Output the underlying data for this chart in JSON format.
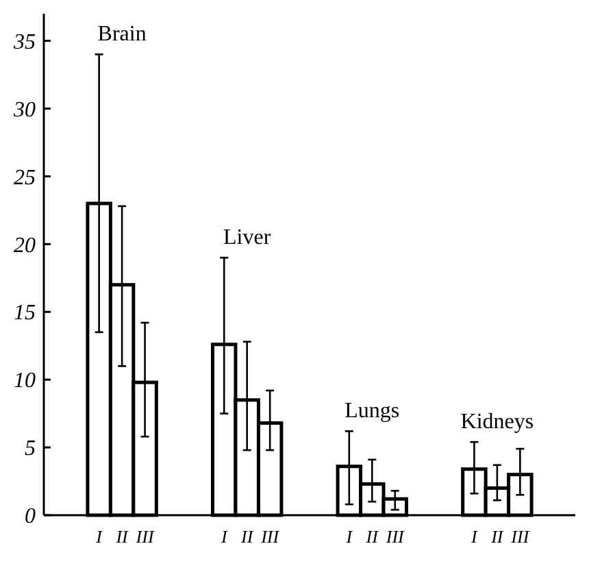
{
  "chart_data": {
    "type": "bar",
    "categories": [
      "Brain",
      "Liver",
      "Lungs",
      "Kidneys"
    ],
    "series": [
      {
        "name": "I",
        "color": "#ffffff",
        "values": [
          23,
          12.6,
          3.6,
          3.4
        ],
        "errors": [
          [
            13.5,
            34
          ],
          [
            7.5,
            19
          ],
          [
            0.8,
            6.2
          ],
          [
            1.6,
            5.4
          ]
        ]
      },
      {
        "name": "II",
        "color": "#ffffff",
        "values": [
          17,
          8.5,
          2.3,
          2
        ],
        "errors": [
          [
            11,
            22.8
          ],
          [
            4.8,
            12.8
          ],
          [
            1,
            4.1
          ],
          [
            1.1,
            3.7
          ]
        ]
      },
      {
        "name": "III",
        "color": "#ffffff",
        "values": [
          9.8,
          6.8,
          1.2,
          3
        ],
        "errors": [
          [
            5.8,
            14.2
          ],
          [
            4.8,
            9.2
          ],
          [
            0.4,
            1.8
          ],
          [
            1.5,
            4.9
          ]
        ]
      }
    ],
    "ylim": [
      0,
      37
    ],
    "yticks": [
      0,
      5,
      10,
      15,
      20,
      25,
      30,
      35
    ]
  }
}
